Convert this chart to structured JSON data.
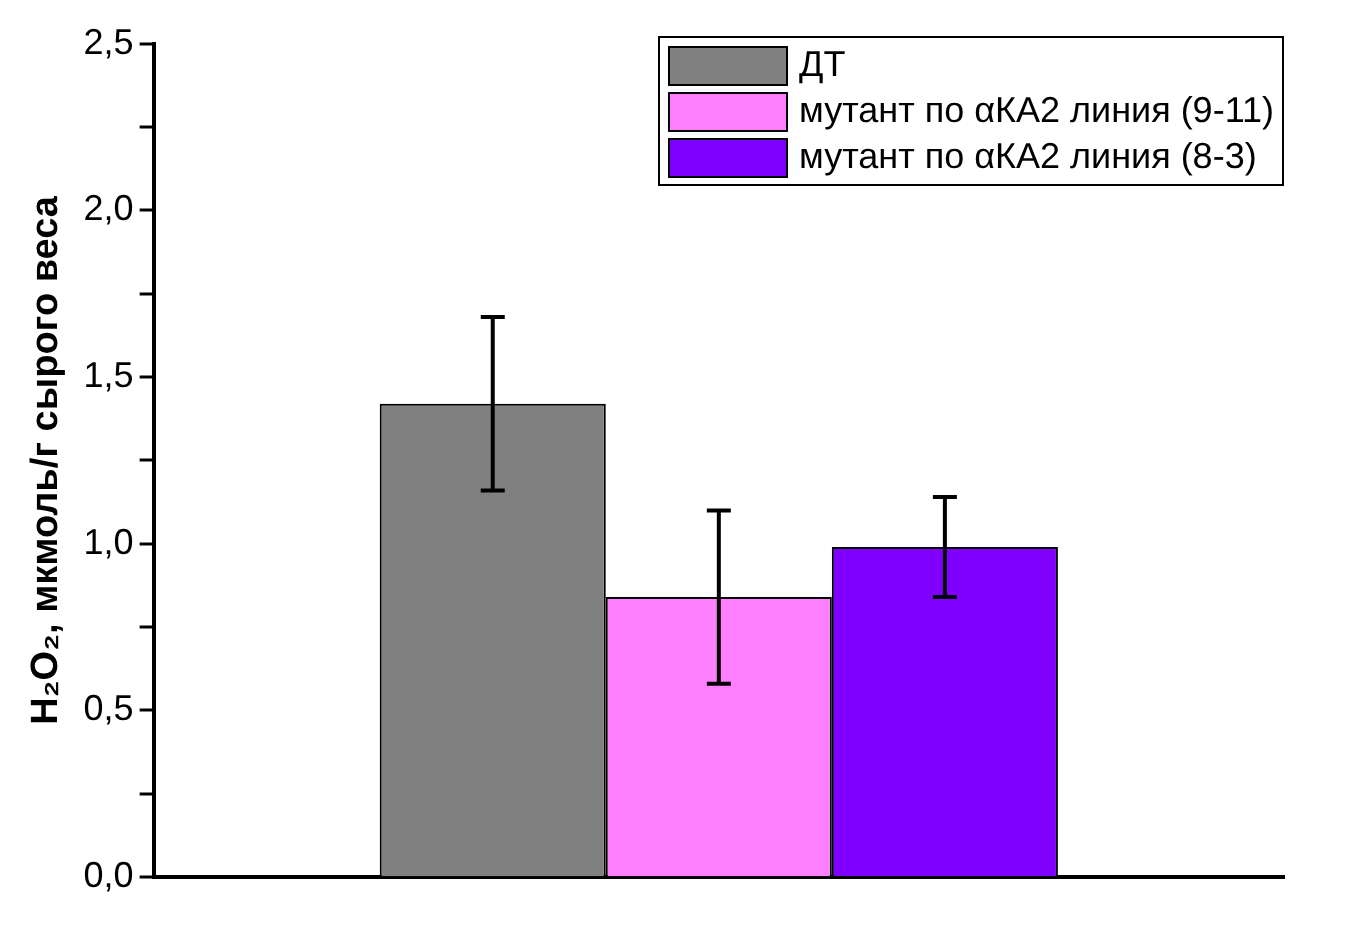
{
  "chart_data": {
    "type": "bar",
    "ylabel": "H₂O₂, мкмоль/г сырого веса",
    "categories": [
      null
    ],
    "series": [
      {
        "name": "ДТ",
        "color": "#808080",
        "values": [
          1.42
        ],
        "errors": [
          [
            1.16,
            1.68
          ]
        ]
      },
      {
        "name": "мутант по αКА2 линия (9-11)",
        "color": "#ff80ff",
        "values": [
          0.84
        ],
        "errors": [
          [
            0.58,
            1.1
          ]
        ]
      },
      {
        "name": "мутант по αКА2 линия (8-3)",
        "color": "#8000ff",
        "values": [
          0.99
        ],
        "errors": [
          [
            0.84,
            1.14
          ]
        ]
      }
    ],
    "ylim": [
      0,
      2.5
    ],
    "yticks": [
      {
        "value": 0,
        "label": "0,0"
      },
      {
        "value": 0.25,
        "label": null
      },
      {
        "value": 0.5,
        "label": "0,5"
      },
      {
        "value": 0.75,
        "label": null
      },
      {
        "value": 1,
        "label": "1,0"
      },
      {
        "value": 1.25,
        "label": null
      },
      {
        "value": 1.5,
        "label": "1,5"
      },
      {
        "value": 1.75,
        "label": null
      },
      {
        "value": 2,
        "label": "2,0"
      },
      {
        "value": 2.25,
        "label": null
      },
      {
        "value": 2.5,
        "label": "2,5"
      }
    ],
    "grid": false,
    "legend": "top right"
  }
}
